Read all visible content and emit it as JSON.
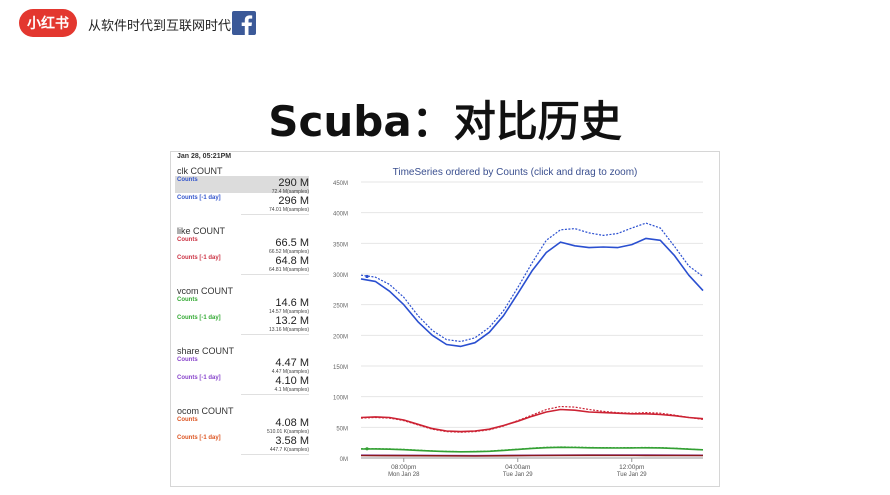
{
  "header": {
    "logo_text": "小红书",
    "tagline": "从软件时代到互联网时代",
    "brand_color": "#e3372f",
    "facebook_icon": "facebook-icon",
    "facebook_color": "#3b5998"
  },
  "slide": {
    "title": "Scuba：对比历史"
  },
  "metrics_panel": {
    "timestamp": "Jan 28, 05:21PM",
    "groups": [
      {
        "title": "clk COUNT",
        "color": "#3355cc",
        "rows": [
          {
            "label": "Counts",
            "value": "290 M",
            "samples": "72.4 M(samples)",
            "highlighted": true
          },
          {
            "label": "Counts [-1 day]",
            "value": "296 M",
            "samples": "74.01 M(samples)",
            "highlighted": false
          }
        ]
      },
      {
        "title": "like COUNT",
        "color": "#cc3344",
        "rows": [
          {
            "label": "Counts",
            "value": "66.5 M",
            "samples": "66.52 M(samples)",
            "highlighted": false
          },
          {
            "label": "Counts [-1 day]",
            "value": "64.8 M",
            "samples": "64.81 M(samples)",
            "highlighted": false
          }
        ]
      },
      {
        "title": "vcom COUNT",
        "color": "#33aa33",
        "rows": [
          {
            "label": "Counts",
            "value": "14.6 M",
            "samples": "14.57 M(samples)",
            "highlighted": false
          },
          {
            "label": "Counts [-1 day]",
            "value": "13.2 M",
            "samples": "13.16 M(samples)",
            "highlighted": false
          }
        ]
      },
      {
        "title": "share COUNT",
        "color": "#8844cc",
        "rows": [
          {
            "label": "Counts",
            "value": "4.47 M",
            "samples": "4.47 M(samples)",
            "highlighted": false
          },
          {
            "label": "Counts [-1 day]",
            "value": "4.10 M",
            "samples": "4.1 M(samples)",
            "highlighted": false
          }
        ]
      },
      {
        "title": "ocom COUNT",
        "color": "#dd5522",
        "rows": [
          {
            "label": "Counts",
            "value": "4.08 M",
            "samples": "510.01 K(samples)",
            "highlighted": false
          },
          {
            "label": "Counts [-1 day]",
            "value": "3.58 M",
            "samples": "447.7 K(samples)",
            "highlighted": false
          }
        ]
      }
    ]
  },
  "chart_data": {
    "type": "line",
    "title": "TimeSeries ordered by Counts (click and drag to zoom)",
    "title_color": "#3a4f8f",
    "ylim": [
      0,
      450
    ],
    "y_ticks": [
      "0M",
      "50M",
      "100M",
      "150M",
      "200M",
      "250M",
      "300M",
      "350M",
      "400M",
      "450M"
    ],
    "y_tick_values": [
      0,
      50,
      100,
      150,
      200,
      250,
      300,
      350,
      400,
      450
    ],
    "x_ticks": [
      {
        "pos": 3,
        "label1": "08:00pm",
        "label2": "Mon Jan 28"
      },
      {
        "pos": 11,
        "label1": "04:00am",
        "label2": "Tue Jan 29"
      },
      {
        "pos": 19,
        "label1": "12:00pm",
        "label2": "Tue Jan 29"
      }
    ],
    "x_range": [
      0,
      24
    ],
    "grid": true,
    "series": [
      {
        "name": "clk Counts",
        "color": "#2a4fd0",
        "dashed": false,
        "x": [
          0,
          1,
          2,
          3,
          4,
          5,
          6,
          7,
          8,
          9,
          10,
          11,
          12,
          13,
          14,
          15,
          16,
          17,
          18,
          19,
          20,
          21,
          22,
          23,
          24
        ],
        "values": [
          292,
          288,
          272,
          250,
          222,
          200,
          185,
          182,
          188,
          205,
          232,
          268,
          305,
          335,
          352,
          346,
          343,
          344,
          343,
          348,
          358,
          355,
          330,
          298,
          273
        ]
      },
      {
        "name": "clk Counts [-1 day]",
        "color": "#2a4fd0",
        "dashed": true,
        "x": [
          0,
          1,
          2,
          3,
          4,
          5,
          6,
          7,
          8,
          9,
          10,
          11,
          12,
          13,
          14,
          15,
          16,
          17,
          18,
          19,
          20,
          21,
          22,
          23,
          24
        ],
        "values": [
          298,
          295,
          283,
          262,
          232,
          208,
          193,
          190,
          196,
          213,
          240,
          278,
          318,
          355,
          372,
          374,
          367,
          363,
          366,
          375,
          383,
          375,
          345,
          313,
          296
        ]
      },
      {
        "name": "like Counts",
        "color": "#cc2233",
        "dashed": false,
        "x": [
          0,
          1,
          2,
          3,
          4,
          5,
          6,
          7,
          8,
          9,
          10,
          11,
          12,
          13,
          14,
          15,
          16,
          17,
          18,
          19,
          20,
          21,
          22,
          23,
          24
        ],
        "values": [
          66,
          67,
          66,
          62,
          55,
          48,
          44,
          43,
          44,
          47,
          53,
          60,
          68,
          75,
          79,
          78,
          75,
          74,
          73,
          72,
          72,
          71,
          69,
          66,
          64
        ]
      },
      {
        "name": "like Counts [-1 day]",
        "color": "#cc2233",
        "dashed": true,
        "x": [
          0,
          1,
          2,
          3,
          4,
          5,
          6,
          7,
          8,
          9,
          10,
          11,
          12,
          13,
          14,
          15,
          16,
          17,
          18,
          19,
          20,
          21,
          22,
          23,
          24
        ],
        "values": [
          65,
          66,
          65,
          61,
          54,
          47,
          43,
          42,
          43,
          46,
          52,
          61,
          70,
          79,
          84,
          83,
          79,
          76,
          74,
          73,
          74,
          73,
          70,
          66,
          63
        ]
      },
      {
        "name": "vcom Counts",
        "color": "#33a033",
        "dashed": false,
        "x": [
          0,
          1,
          2,
          3,
          4,
          5,
          6,
          7,
          8,
          9,
          10,
          11,
          12,
          13,
          14,
          15,
          16,
          17,
          18,
          19,
          20,
          21,
          22,
          23,
          24
        ],
        "values": [
          14.6,
          14.8,
          14.4,
          13.6,
          12.4,
          11.2,
          10.4,
          10.1,
          10.3,
          11,
          12.4,
          14,
          15.6,
          16.8,
          17.4,
          17.2,
          16.7,
          16.4,
          16.3,
          16.4,
          16.7,
          16.5,
          15.6,
          14.4,
          13.4
        ]
      },
      {
        "name": "vcom Counts [-1 day]",
        "color": "#33a033",
        "dashed": true,
        "x": [
          0,
          1,
          2,
          3,
          4,
          5,
          6,
          7,
          8,
          9,
          10,
          11,
          12,
          13,
          14,
          15,
          16,
          17,
          18,
          19,
          20,
          21,
          22,
          23,
          24
        ],
        "values": [
          15.1,
          15.2,
          14.8,
          14,
          12.8,
          11.6,
          10.8,
          10.4,
          10.6,
          11.3,
          12.8,
          14.5,
          16.2,
          17.4,
          18,
          17.8,
          17.2,
          16.9,
          16.8,
          16.9,
          17.2,
          17,
          16,
          14.8,
          13.2
        ]
      },
      {
        "name": "share Counts",
        "color": "#8844cc",
        "dashed": false,
        "x": [
          0,
          4,
          8,
          12,
          16,
          20,
          24
        ],
        "values": [
          4.5,
          4.2,
          3.8,
          4.4,
          4.8,
          4.7,
          4.47
        ]
      },
      {
        "name": "ocom Counts",
        "color": "#8b1a1a",
        "dashed": false,
        "x": [
          0,
          4,
          8,
          12,
          16,
          20,
          24
        ],
        "values": [
          4.0,
          3.7,
          3.3,
          4.0,
          4.4,
          4.3,
          4.08
        ]
      }
    ]
  }
}
